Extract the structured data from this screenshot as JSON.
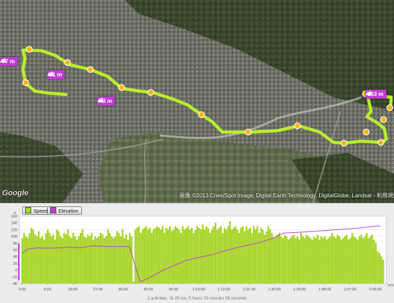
{
  "map": {
    "elevation_tags": [
      {
        "label": "77 m"
      },
      {
        "label": "81 m"
      },
      {
        "label": "73 m"
      },
      {
        "label": "163 m"
      }
    ],
    "copyright": "画像 ©2013 Cnes/Spot Image, Digital Earth Technology, DigitalGlobe, Landsat - 利用規約",
    "google_logo": "Google",
    "colors": {
      "route": "#b8ee2a",
      "marker": "#f6b400",
      "elevation_tag": "#c23bd4"
    }
  },
  "legend": {
    "speed_label": "Speed",
    "elevation_label": "Elevation",
    "speed_color": "#a8d820",
    "elevation_color": "#c040d0"
  },
  "chart_data": {
    "type": "bar",
    "title": "",
    "ylim": [
      -40,
      160
    ],
    "yticks": [
      "160",
      "140",
      "120",
      "100",
      "80",
      "60",
      "40",
      "20",
      "0",
      "-20",
      "-40"
    ],
    "xtick_labels": [
      "0:00",
      "9:00",
      "18:00",
      "27:00",
      "36:00",
      "45:00",
      "54:00",
      "1:03:00",
      "1:12:00",
      "1:21:00",
      "1:30:00",
      "1:39:00",
      "1:48:00",
      "1:57:00",
      "2:06:00"
    ],
    "x_unit": "h:m:s",
    "y_unit": "k",
    "speed_base": [
      95,
      110,
      100,
      95,
      110,
      125,
      120,
      105,
      100,
      115,
      95,
      100,
      90,
      110,
      120,
      110,
      100,
      105,
      90,
      120,
      115,
      100,
      95,
      110,
      105,
      120,
      100,
      95,
      110,
      100,
      90,
      100,
      110,
      120,
      100,
      95,
      105,
      100,
      110,
      90,
      100,
      95,
      100,
      110,
      105,
      95,
      100,
      120,
      110,
      100,
      95,
      100,
      115,
      110,
      100,
      120,
      95,
      105,
      90,
      110,
      100,
      -35,
      120,
      125,
      130,
      110,
      120,
      125,
      130,
      120,
      125,
      110,
      120,
      125,
      130,
      125,
      120,
      130,
      110,
      125,
      120,
      130,
      115,
      120,
      130,
      125,
      120,
      110,
      130,
      120,
      125,
      130,
      120,
      125,
      110,
      120,
      130,
      125,
      120,
      135,
      120,
      130,
      125,
      110,
      120,
      130,
      140,
      120,
      125,
      130,
      110,
      125,
      120,
      130,
      145,
      120,
      125,
      130,
      120,
      110,
      125,
      130,
      115,
      130,
      120,
      125,
      110,
      130,
      120,
      130,
      110,
      125,
      120,
      105,
      115,
      130,
      120,
      110,
      95,
      100,
      105,
      110,
      100,
      95,
      105,
      100,
      90,
      95,
      100,
      105,
      95,
      100,
      90,
      110,
      100,
      95,
      105,
      100,
      95,
      90,
      100,
      95,
      105,
      90,
      100,
      95,
      100,
      90,
      95,
      100,
      110,
      100,
      95,
      105,
      100,
      90,
      95,
      100,
      105,
      90,
      95,
      110,
      100,
      95,
      90,
      100,
      105,
      95,
      100,
      110,
      95,
      100,
      105,
      90,
      80,
      55,
      50,
      40,
      30
    ],
    "elevation": [
      {
        "t": 0,
        "v": 50
      },
      {
        "t": 2,
        "v": 62
      },
      {
        "t": 6,
        "v": 66
      },
      {
        "t": 9,
        "v": 65
      },
      {
        "t": 15,
        "v": 66
      },
      {
        "t": 18,
        "v": 68
      },
      {
        "t": 22,
        "v": 66
      },
      {
        "t": 27,
        "v": 72
      },
      {
        "t": 32,
        "v": 70
      },
      {
        "t": 38,
        "v": 70
      },
      {
        "t": 40,
        "v": 70
      },
      {
        "t": 41,
        "v": 69
      },
      {
        "t": 45,
        "v": -35
      },
      {
        "t": 48,
        "v": -25
      },
      {
        "t": 54,
        "v": 0
      },
      {
        "t": 63,
        "v": 30
      },
      {
        "t": 72,
        "v": 45
      },
      {
        "t": 81,
        "v": 65
      },
      {
        "t": 90,
        "v": 80
      },
      {
        "t": 96,
        "v": 95
      },
      {
        "t": 100,
        "v": 110
      },
      {
        "t": 108,
        "v": 113
      },
      {
        "t": 117,
        "v": 118
      },
      {
        "t": 124,
        "v": 122
      },
      {
        "t": 129,
        "v": 125
      },
      {
        "t": 135,
        "v": 130
      },
      {
        "t": 136,
        "v": 131
      },
      {
        "t": 137,
        "v": 130
      }
    ],
    "x_max_minutes": 137
  },
  "summary": "2 activities, 31.00 km, 5 hours 29 minutes 56 seconds"
}
